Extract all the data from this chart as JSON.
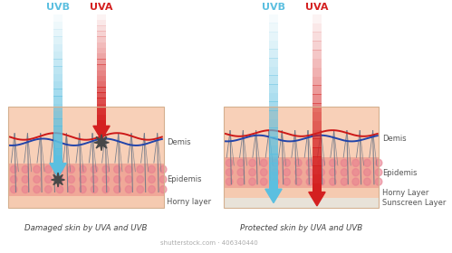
{
  "bg_color": "#ffffff",
  "uvb_color": "#5bbfe0",
  "uva_color": "#d42020",
  "uvb_label": "UVB",
  "uva_label": "UVA",
  "left_caption": "Damaged skin by UVA and UVB",
  "right_caption": "Protected skin by UVA and UVB",
  "watermark": "shutterstock.com · 406340440",
  "layer_label_color": "#555555",
  "caption_color": "#444444",
  "horny_color": "#f5cab0",
  "epidermis_color": "#f0a898",
  "dermis_color": "#f8d0b8",
  "dot_color": "#e88090",
  "sunscreen_color": "#e8e2d8",
  "wave_red": "#cc1818",
  "wave_blue": "#2244aa",
  "hair_color": "#707888",
  "hair_color2": "#aa3030",
  "damage_color": "#484848",
  "border_color": "#d4b090"
}
